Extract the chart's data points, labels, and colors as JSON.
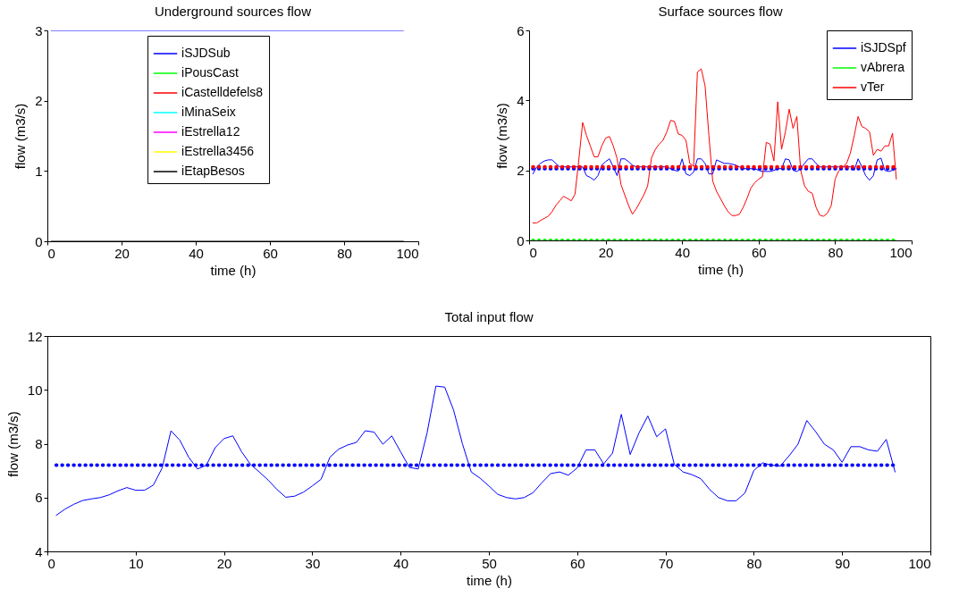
{
  "chart_data": [
    {
      "type": "line",
      "title": "Underground sources flow",
      "xlabel": "time (h)",
      "ylabel": "flow (m3/s)",
      "xlim": [
        0,
        100
      ],
      "xticks": [
        0,
        20,
        40,
        60,
        80,
        100
      ],
      "ylim": [
        0,
        3
      ],
      "yticks": [
        0,
        1,
        2,
        3
      ],
      "legend": "top",
      "x": [
        1,
        96
      ],
      "series": [
        {
          "name": "iSJDSub",
          "color": "#0000ff",
          "values": [
            3,
            3
          ]
        },
        {
          "name": "iPousCast",
          "color": "#00ff00",
          "values": [
            null,
            null
          ]
        },
        {
          "name": "iCastelldefels8",
          "color": "#ff0000",
          "values": [
            null,
            null
          ]
        },
        {
          "name": "iMinaSeix",
          "color": "#00ffff",
          "values": [
            null,
            null
          ]
        },
        {
          "name": "iEstrella12",
          "color": "#ff00ff",
          "values": [
            null,
            null
          ]
        },
        {
          "name": "iEstrella3456",
          "color": "#ffff00",
          "values": [
            null,
            null
          ]
        },
        {
          "name": "iEtapBesos",
          "color": "#000000",
          "values": [
            0,
            0
          ]
        }
      ]
    },
    {
      "type": "line",
      "title": "Surface sources flow",
      "xlabel": "time (h)",
      "ylabel": "flow (m3/s)",
      "xlim": [
        0,
        100
      ],
      "xticks": [
        0,
        20,
        40,
        60,
        80,
        100
      ],
      "ylim": [
        0,
        6
      ],
      "yticks": [
        0,
        2,
        4,
        6
      ],
      "legend": "top right",
      "x": [
        1,
        2,
        3,
        4,
        5,
        6,
        7,
        8,
        9,
        10,
        11,
        12,
        13,
        14,
        15,
        16,
        17,
        18,
        19,
        20,
        21,
        22,
        23,
        24,
        25,
        26,
        27,
        28,
        29,
        30,
        31,
        32,
        33,
        34,
        35,
        36,
        37,
        38,
        39,
        40,
        41,
        42,
        43,
        44,
        45,
        46,
        47,
        48,
        49,
        50,
        51,
        52,
        53,
        54,
        55,
        56,
        57,
        58,
        59,
        60,
        61,
        62,
        63,
        64,
        65,
        66,
        67,
        68,
        69,
        70,
        71,
        72,
        73,
        74,
        75,
        76,
        77,
        78,
        79,
        80,
        81,
        82,
        83,
        84,
        85,
        86,
        87,
        88,
        89,
        90,
        91,
        92,
        93,
        94,
        95,
        96
      ],
      "series": [
        {
          "name": "iSJDSpf",
          "color": "#0000ff",
          "values": [
            1.9,
            2.1,
            2.2,
            2.27,
            2.3,
            2.3,
            2.2,
            2.1,
            2.1,
            2.1,
            2.1,
            2.1,
            2.1,
            2.1,
            1.85,
            1.8,
            1.72,
            1.85,
            2.15,
            2.25,
            2.33,
            2.1,
            1.85,
            2.33,
            2.33,
            2.25,
            2.15,
            2.1,
            2.1,
            2.1,
            2.1,
            2.1,
            2.1,
            2.1,
            2.1,
            2.1,
            2.05,
            2.0,
            1.98,
            2.33,
            1.9,
            1.85,
            1.95,
            2.33,
            2.33,
            2.2,
            1.9,
            1.9,
            2.3,
            2.25,
            2.2,
            2.2,
            2.18,
            2.15,
            2.1,
            2.05,
            2.05,
            2.05,
            2.05,
            2.0,
            1.97,
            1.97,
            1.97,
            2.0,
            2.05,
            2.05,
            2.33,
            2.3,
            2.0,
            1.97,
            2.05,
            2.2,
            2.33,
            2.33,
            2.2,
            2.1,
            2.1,
            2.1,
            2.1,
            2.1,
            2.1,
            2.1,
            2.1,
            2.1,
            2.0,
            2.33,
            2.1,
            1.85,
            1.72,
            1.85,
            2.3,
            2.35,
            2.0,
            1.97,
            2.0,
            2.05
          ]
        },
        {
          "name": "vAbrera",
          "color": "#00ff00",
          "values": [
            0,
            0,
            0,
            0,
            0,
            0,
            0,
            0,
            0,
            0,
            0,
            0,
            0,
            0,
            0,
            0,
            0,
            0,
            0,
            0,
            0,
            0,
            0,
            0,
            0,
            0,
            0,
            0,
            0,
            0,
            0,
            0,
            0,
            0,
            0,
            0,
            0,
            0,
            0,
            0,
            0,
            0,
            0,
            0,
            0,
            0,
            0,
            0,
            0,
            0,
            0,
            0,
            0,
            0,
            0,
            0,
            0,
            0,
            0,
            0,
            0,
            0,
            0,
            0,
            0,
            0,
            0,
            0,
            0,
            0,
            0,
            0,
            0,
            0,
            0,
            0,
            0,
            0,
            0,
            0,
            0,
            0,
            0,
            0,
            0,
            0,
            0,
            0,
            0,
            0,
            0,
            0,
            0,
            0,
            0,
            0
          ],
          "line_style": "dotted"
        },
        {
          "name": "vTer",
          "color": "#ff0000",
          "values": [
            0.5,
            0.5,
            0.57,
            0.63,
            0.69,
            0.82,
            1.0,
            1.13,
            1.26,
            1.2,
            1.13,
            1.32,
            2.3,
            3.37,
            3.0,
            2.7,
            2.39,
            2.39,
            2.7,
            2.92,
            2.97,
            2.7,
            2.34,
            1.6,
            1.3,
            1.0,
            0.75,
            0.9,
            1.1,
            1.3,
            1.56,
            2.36,
            2.6,
            2.75,
            2.86,
            3.1,
            3.43,
            3.4,
            3.04,
            3.0,
            2.86,
            2.2,
            2.12,
            4.81,
            4.9,
            4.42,
            3.0,
            1.69,
            1.4,
            1.2,
            1.0,
            0.82,
            0.71,
            0.71,
            0.75,
            0.95,
            1.21,
            1.5,
            1.65,
            1.75,
            1.82,
            2.8,
            2.75,
            2.27,
            3.96,
            2.6,
            3.1,
            3.75,
            3.2,
            3.54,
            2.0,
            1.56,
            1.4,
            1.35,
            0.95,
            0.72,
            0.69,
            0.78,
            1.0,
            1.75,
            2.0,
            2.1,
            2.2,
            2.5,
            3.0,
            3.54,
            3.25,
            3.2,
            3.1,
            2.43,
            2.6,
            2.55,
            2.7,
            2.7,
            3.06,
            1.75
          ]
        },
        {
          "color": "#0000ff",
          "values": [
            2.05,
            2.05,
            2.05,
            2.05,
            2.05,
            2.05,
            2.05,
            2.05,
            2.05,
            2.05,
            2.05,
            2.05,
            2.05,
            2.05,
            2.05,
            2.05,
            2.05,
            2.05,
            2.05,
            2.05,
            2.05,
            2.05,
            2.05,
            2.05,
            2.05,
            2.05,
            2.05,
            2.05,
            2.05,
            2.05,
            2.05,
            2.05,
            2.05,
            2.05,
            2.05,
            2.05,
            2.05,
            2.05,
            2.05,
            2.05,
            2.05,
            2.05,
            2.05,
            2.05,
            2.05,
            2.05,
            2.05,
            2.05,
            2.05,
            2.05,
            2.05,
            2.05,
            2.05,
            2.05,
            2.05,
            2.05,
            2.05,
            2.05,
            2.05,
            2.05,
            2.05,
            2.05,
            2.05,
            2.05,
            2.05,
            2.05,
            2.05,
            2.05,
            2.05,
            2.05,
            2.05,
            2.05,
            2.05,
            2.05,
            2.05,
            2.05,
            2.05,
            2.05,
            2.05,
            2.05,
            2.05,
            2.05,
            2.05,
            2.05,
            2.05,
            2.05,
            2.05,
            2.05,
            2.05,
            2.05,
            2.05,
            2.05,
            2.05,
            2.05,
            2.05,
            2.05
          ],
          "line_style": "dotted"
        },
        {
          "color": "#ff0000",
          "values": [
            2.1,
            2.1,
            2.1,
            2.1,
            2.1,
            2.1,
            2.1,
            2.1,
            2.1,
            2.1,
            2.1,
            2.1,
            2.1,
            2.1,
            2.1,
            2.1,
            2.1,
            2.1,
            2.1,
            2.1,
            2.1,
            2.1,
            2.1,
            2.1,
            2.1,
            2.1,
            2.1,
            2.1,
            2.1,
            2.1,
            2.1,
            2.1,
            2.1,
            2.1,
            2.1,
            2.1,
            2.1,
            2.1,
            2.1,
            2.1,
            2.1,
            2.1,
            2.1,
            2.1,
            2.1,
            2.1,
            2.1,
            2.1,
            2.1,
            2.1,
            2.1,
            2.1,
            2.1,
            2.1,
            2.1,
            2.1,
            2.1,
            2.1,
            2.1,
            2.1,
            2.1,
            2.1,
            2.1,
            2.1,
            2.1,
            2.1,
            2.1,
            2.1,
            2.1,
            2.1,
            2.1,
            2.1,
            2.1,
            2.1,
            2.1,
            2.1,
            2.1,
            2.1,
            2.1,
            2.1,
            2.1,
            2.1,
            2.1,
            2.1,
            2.1,
            2.1,
            2.1,
            2.1,
            2.1,
            2.1,
            2.1,
            2.1,
            2.1,
            2.1,
            2.1,
            2.1
          ],
          "line_style": "dotted"
        }
      ]
    },
    {
      "type": "line",
      "title": "Total input flow",
      "xlabel": "time (h)",
      "ylabel": "flow (m3/s)",
      "xlim": [
        0,
        100
      ],
      "xticks": [
        0,
        10,
        20,
        30,
        40,
        50,
        60,
        70,
        80,
        90,
        100
      ],
      "ylim": [
        4,
        12
      ],
      "yticks": [
        4,
        6,
        8,
        10,
        12
      ],
      "x": [
        1,
        2,
        3,
        4,
        5,
        6,
        7,
        8,
        9,
        10,
        11,
        12,
        13,
        14,
        15,
        16,
        17,
        18,
        19,
        20,
        21,
        22,
        23,
        24,
        25,
        26,
        27,
        28,
        29,
        30,
        31,
        32,
        33,
        34,
        35,
        36,
        37,
        38,
        39,
        40,
        41,
        42,
        43,
        44,
        45,
        46,
        47,
        48,
        49,
        50,
        51,
        52,
        53,
        54,
        55,
        56,
        57,
        58,
        59,
        60,
        61,
        62,
        63,
        64,
        65,
        66,
        67,
        68,
        69,
        70,
        71,
        72,
        73,
        74,
        75,
        76,
        77,
        78,
        79,
        80,
        81,
        82,
        83,
        84,
        85,
        86,
        87,
        88,
        89,
        90,
        91,
        92,
        93,
        94,
        95,
        96
      ],
      "series": [
        {
          "color": "#0000ff",
          "values": [
            5.34,
            5.57,
            5.75,
            5.89,
            5.95,
            6.0,
            6.1,
            6.25,
            6.37,
            6.27,
            6.27,
            6.46,
            7.1,
            8.48,
            8.13,
            7.5,
            7.06,
            7.2,
            7.85,
            8.19,
            8.29,
            7.7,
            7.23,
            6.95,
            6.65,
            6.3,
            6.01,
            6.05,
            6.2,
            6.43,
            6.68,
            7.5,
            7.8,
            7.95,
            8.05,
            8.48,
            8.43,
            7.98,
            8.29,
            7.7,
            7.12,
            7.06,
            8.4,
            10.14,
            10.1,
            9.25,
            8.0,
            6.95,
            6.72,
            6.43,
            6.12,
            6.0,
            5.95,
            6.0,
            6.18,
            6.55,
            6.89,
            6.95,
            6.83,
            7.1,
            7.77,
            7.77,
            7.25,
            7.65,
            9.09,
            7.6,
            8.4,
            9.03,
            8.26,
            8.55,
            7.23,
            6.95,
            6.85,
            6.7,
            6.3,
            6.0,
            5.88,
            5.88,
            6.17,
            7.0,
            7.29,
            7.2,
            7.17,
            7.55,
            7.98,
            8.86,
            8.45,
            7.98,
            7.77,
            7.31,
            7.89,
            7.89,
            7.77,
            7.72,
            8.16,
            6.95
          ]
        },
        {
          "color": "#0000ff",
          "values": [
            7.2,
            7.2,
            7.2,
            7.2,
            7.2,
            7.2,
            7.2,
            7.2,
            7.2,
            7.2,
            7.2,
            7.2,
            7.2,
            7.2,
            7.2,
            7.2,
            7.2,
            7.2,
            7.2,
            7.2,
            7.2,
            7.2,
            7.2,
            7.2,
            7.2,
            7.2,
            7.2,
            7.2,
            7.2,
            7.2,
            7.2,
            7.2,
            7.2,
            7.2,
            7.2,
            7.2,
            7.2,
            7.2,
            7.2,
            7.2,
            7.2,
            7.2,
            7.2,
            7.2,
            7.2,
            7.2,
            7.2,
            7.2,
            7.2,
            7.2,
            7.2,
            7.2,
            7.2,
            7.2,
            7.2,
            7.2,
            7.2,
            7.2,
            7.2,
            7.2,
            7.2,
            7.2,
            7.2,
            7.2,
            7.2,
            7.2,
            7.2,
            7.2,
            7.2,
            7.2,
            7.2,
            7.2,
            7.2,
            7.2,
            7.2,
            7.2,
            7.2,
            7.2,
            7.2,
            7.2,
            7.2,
            7.2,
            7.2,
            7.2,
            7.2,
            7.2,
            7.2,
            7.2,
            7.2,
            7.2,
            7.2,
            7.2,
            7.2,
            7.2,
            7.2,
            7.2
          ],
          "line_style": "dotted"
        }
      ]
    }
  ]
}
